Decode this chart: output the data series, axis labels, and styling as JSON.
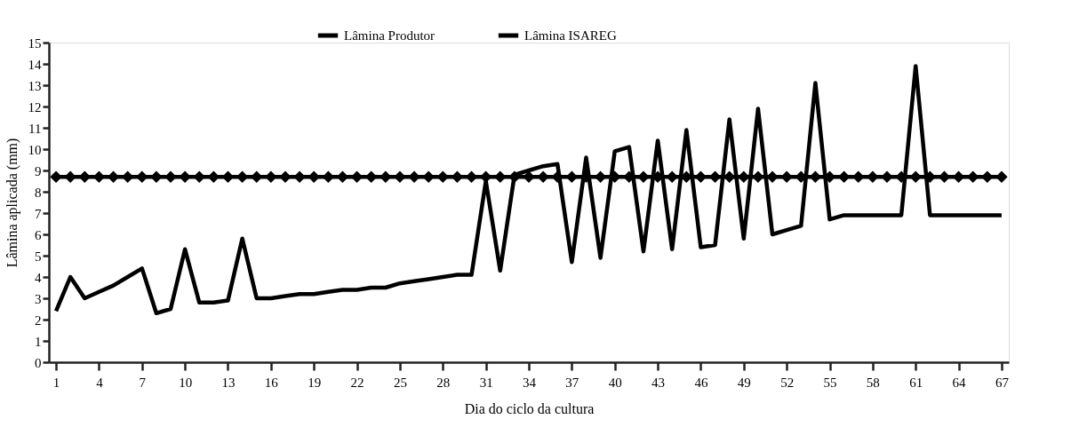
{
  "chart_data": {
    "type": "line",
    "xlabel": "Dia do ciclo da cultura",
    "ylabel": "Lâmina aplicada (mm)",
    "categories": [
      "1",
      null,
      null,
      "4",
      null,
      null,
      "7",
      null,
      null,
      "10",
      null,
      null,
      "13",
      null,
      null,
      "16",
      null,
      null,
      "19",
      null,
      null,
      "22",
      null,
      null,
      "25",
      null,
      null,
      "28",
      null,
      null,
      "31",
      null,
      null,
      "34",
      null,
      null,
      "37",
      null,
      null,
      "40",
      null,
      null,
      "43",
      null,
      null,
      "46",
      null,
      null,
      "49",
      null,
      null,
      "52",
      null,
      null,
      "55",
      null,
      null,
      "58",
      null,
      null,
      "61",
      null,
      null,
      "64",
      null,
      null,
      "67"
    ],
    "ylim": [
      0,
      15
    ],
    "yticks": [
      0,
      1,
      2,
      3,
      4,
      5,
      6,
      7,
      8,
      9,
      10,
      11,
      12,
      13,
      14,
      15
    ],
    "grid": false,
    "legend": "top",
    "line_style": "solid",
    "series": [
      {
        "name": "Lâmina Produtor",
        "color": "#000000",
        "marker": "diamond",
        "values": [
          8.7,
          8.7,
          8.7,
          8.7,
          8.7,
          8.7,
          8.7,
          8.7,
          8.7,
          8.7,
          8.7,
          8.7,
          8.7,
          8.7,
          8.7,
          8.7,
          8.7,
          8.7,
          8.7,
          8.7,
          8.7,
          8.7,
          8.7,
          8.7,
          8.7,
          8.7,
          8.7,
          8.7,
          8.7,
          8.7,
          8.7,
          8.7,
          8.7,
          8.7,
          8.7,
          8.7,
          8.7,
          8.7,
          8.7,
          8.7,
          8.7,
          8.7,
          8.7,
          8.7,
          8.7,
          8.7,
          8.7,
          8.7,
          8.7,
          8.7,
          8.7,
          8.7,
          8.7,
          8.7,
          8.7,
          8.7,
          8.7,
          8.7,
          8.7,
          8.7,
          8.7,
          8.7,
          8.7,
          8.7,
          8.7,
          8.7,
          8.7
        ]
      },
      {
        "name": "Lâmina ISAREG",
        "color": "#000000",
        "marker": "none",
        "values": [
          2.4,
          4.0,
          3.0,
          3.3,
          3.6,
          4.0,
          4.4,
          2.3,
          2.5,
          5.3,
          2.8,
          2.8,
          2.9,
          5.8,
          3.0,
          3.0,
          3.1,
          3.2,
          3.2,
          3.3,
          3.4,
          3.4,
          3.5,
          3.5,
          3.7,
          3.8,
          3.9,
          4.0,
          4.1,
          4.1,
          8.5,
          4.3,
          8.8,
          9.0,
          9.2,
          9.3,
          4.7,
          9.6,
          4.9,
          9.9,
          10.1,
          5.2,
          10.4,
          5.3,
          10.9,
          5.4,
          5.5,
          11.4,
          5.8,
          11.9,
          6.0,
          6.2,
          6.4,
          13.1,
          6.7,
          6.9,
          6.9,
          6.9,
          6.9,
          6.9,
          13.9,
          6.9,
          6.9,
          6.9,
          6.9,
          6.9,
          6.9
        ]
      }
    ]
  }
}
